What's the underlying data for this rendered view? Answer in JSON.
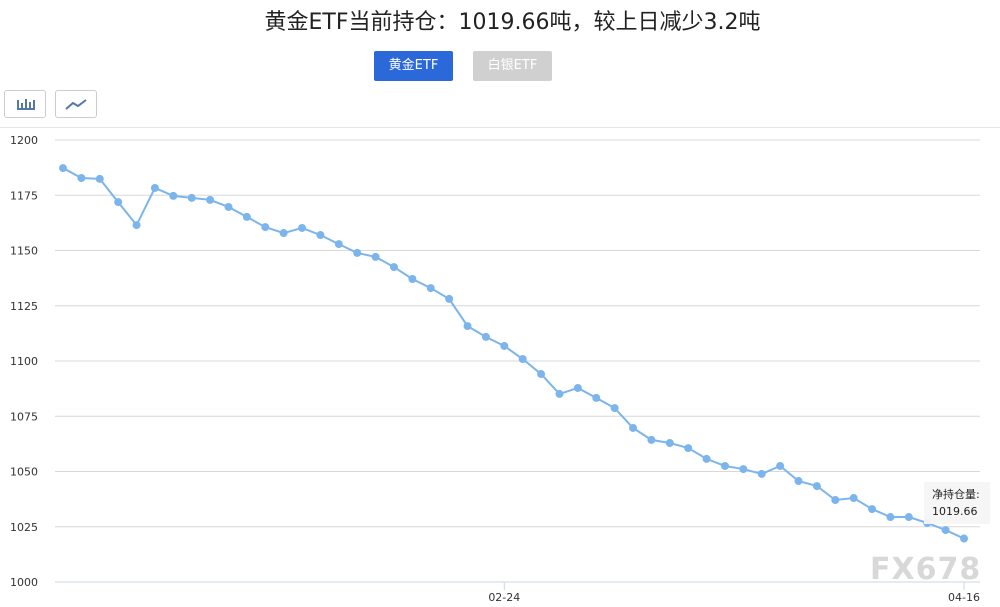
{
  "buttons": [
    "黄金ETF",
    "白银ETF"
  ],
  "watermark": "FX678",
  "chart_data": {
    "type": "line",
    "title": "黄金ETF当前持仓：1019.66吨，较上日减少3.2吨",
    "categories": [
      null,
      null,
      null,
      null,
      null,
      null,
      null,
      null,
      null,
      null,
      null,
      null,
      null,
      null,
      null,
      null,
      null,
      null,
      null,
      null,
      null,
      null,
      null,
      null,
      "02-24",
      null,
      null,
      null,
      null,
      null,
      null,
      null,
      null,
      null,
      null,
      null,
      null,
      null,
      null,
      null,
      null,
      null,
      null,
      null,
      null,
      null,
      null,
      null,
      null,
      "04-16"
    ],
    "values": [
      1187.3,
      1182.8,
      1182.4,
      1171.9,
      1161.5,
      1178.3,
      1174.7,
      1173.8,
      1172.9,
      1169.7,
      1165.2,
      1160.6,
      1157.9,
      1160.2,
      1157.0,
      1152.9,
      1148.9,
      1147.1,
      1142.5,
      1137.1,
      1133.0,
      1128.1,
      1115.8,
      1110.9,
      1106.8,
      1100.9,
      1094.1,
      1085.1,
      1087.8,
      1083.3,
      1078.7,
      1069.7,
      1064.3,
      1062.9,
      1060.6,
      1055.7,
      1052.5,
      1051.1,
      1048.9,
      1052.5,
      1045.7,
      1043.4,
      1037.1,
      1038.0,
      1033.0,
      1029.4,
      1029.4,
      1026.7,
      1023.5,
      1019.66
    ],
    "color": "#7cb5ec",
    "ylim": [
      1000,
      1200
    ],
    "yticks": [
      1000,
      1025,
      1050,
      1075,
      1100,
      1125,
      1150,
      1175,
      1200
    ],
    "grid": true,
    "tooltip_label": "净持仓量:"
  }
}
